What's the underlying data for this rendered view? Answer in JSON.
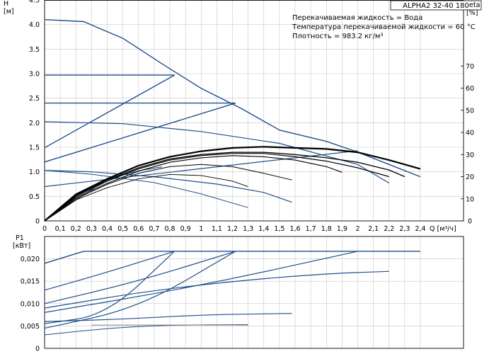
{
  "chart_data": [
    {
      "type": "line",
      "title": "ALPHA2 32-40 180",
      "ylabel": "H",
      "ylabel_unit": "[м]",
      "y2label": "eta",
      "y2label_unit": "[%]",
      "info_lines": [
        "Перекачиваемая жидкость = Вода",
        "Температура перекачиваемой жидкости = 60 °C",
        "Плотность = 983.2 кг/м³"
      ],
      "xlim": [
        0,
        2.4
      ],
      "ylim": [
        0,
        4.5
      ],
      "y2lim": [
        0,
        80
      ],
      "xticks": [
        "0",
        "0,1",
        "0,2",
        "0,3",
        "0,4",
        "0,5",
        "0,6",
        "0,7",
        "0,8",
        "0,9",
        "1",
        "1,1",
        "1,2",
        "1,3",
        "1,4",
        "1,5",
        "1,6",
        "1,7",
        "1,8",
        "1,9",
        "2",
        "2,1",
        "2,2",
        "2,3",
        "2,4"
      ],
      "xlabel_tail": "Q [м³/ч]",
      "yticks": [
        "0",
        "0.5",
        "1.0",
        "1.5",
        "2.0",
        "2.5",
        "3.0",
        "3.5",
        "4.0",
        "4.5"
      ],
      "y2ticks": [
        "0",
        "10",
        "20",
        "30",
        "40",
        "50",
        "60",
        "70"
      ],
      "grid": true,
      "series": [
        {
          "role": "pump-curve",
          "color": "#1f4e8c",
          "width": 1.4,
          "points": [
            [
              0,
              4.1
            ],
            [
              0.25,
              4.06
            ],
            [
              0.5,
              3.72
            ],
            [
              0.75,
              3.2
            ],
            [
              1.0,
              2.7
            ],
            [
              1.25,
              2.3
            ],
            [
              1.5,
              1.85
            ],
            [
              1.8,
              1.62
            ],
            [
              2.0,
              1.4
            ],
            [
              2.2,
              1.15
            ],
            [
              2.4,
              0.9
            ]
          ]
        },
        {
          "role": "constant-pressure",
          "color": "#1f4e8c",
          "width": 1.4,
          "points": [
            [
              0,
              2.97
            ],
            [
              0.83,
              2.97
            ]
          ]
        },
        {
          "role": "constant-pressure",
          "color": "#1f4e8c",
          "width": 1.4,
          "points": [
            [
              0,
              2.4
            ],
            [
              1.22,
              2.4
            ]
          ]
        },
        {
          "role": "proportional-pressure",
          "color": "#1f4e8c",
          "width": 1.4,
          "points": [
            [
              0,
              1.49
            ],
            [
              0.83,
              2.97
            ]
          ]
        },
        {
          "role": "proportional-pressure",
          "color": "#1f4e8c",
          "width": 1.4,
          "points": [
            [
              0,
              1.2
            ],
            [
              1.22,
              2.4
            ]
          ]
        },
        {
          "role": "proportional-pressure",
          "color": "#1f4e8c",
          "width": 1.2,
          "points": [
            [
              0,
              0.7
            ],
            [
              2.0,
              1.43
            ]
          ]
        },
        {
          "role": "constant-curve",
          "color": "#1f4e8c",
          "width": 1.2,
          "points": [
            [
              0,
              2.02
            ],
            [
              0.5,
              1.98
            ],
            [
              1.0,
              1.82
            ],
            [
              1.5,
              1.58
            ],
            [
              2.0,
              1.15
            ],
            [
              2.2,
              0.77
            ]
          ]
        },
        {
          "role": "constant-curve",
          "color": "#1f4e8c",
          "width": 1.2,
          "points": [
            [
              0,
              1.03
            ],
            [
              0.3,
              1.0
            ],
            [
              0.7,
              0.9
            ],
            [
              1.1,
              0.75
            ],
            [
              1.4,
              0.58
            ],
            [
              1.58,
              0.38
            ]
          ]
        },
        {
          "role": "constant-curve",
          "color": "#1f4e8c",
          "width": 1.0,
          "points": [
            [
              0,
              1.03
            ],
            [
              0.3,
              0.95
            ],
            [
              0.7,
              0.78
            ],
            [
              1.0,
              0.55
            ],
            [
              1.3,
              0.27
            ]
          ]
        },
        {
          "role": "system-curve",
          "color": "#1f4e8c",
          "width": 1.2,
          "points": [
            [
              0,
              0
            ],
            [
              0.4,
              0.85
            ],
            [
              0.6,
              1.02
            ],
            [
              0.75,
              1.1
            ]
          ]
        },
        {
          "role": "efficiency",
          "axis": "y2",
          "color": "#000000",
          "width": 2.2,
          "points": [
            [
              0,
              0
            ],
            [
              0.2,
              12
            ],
            [
              0.4,
              19
            ],
            [
              0.6,
              25
            ],
            [
              0.8,
              29
            ],
            [
              1.0,
              31.5
            ],
            [
              1.2,
              33
            ],
            [
              1.4,
              33.5
            ],
            [
              1.6,
              33
            ],
            [
              1.8,
              32.5
            ],
            [
              2.0,
              31
            ],
            [
              2.2,
              27.5
            ],
            [
              2.4,
              23.5
            ]
          ]
        },
        {
          "role": "efficiency",
          "axis": "y2",
          "color": "#000000",
          "width": 1.3,
          "points": [
            [
              0,
              0
            ],
            [
              0.2,
              11.5
            ],
            [
              0.4,
              18.5
            ],
            [
              0.6,
              24
            ],
            [
              0.8,
              28
            ],
            [
              1.0,
              30
            ],
            [
              1.2,
              31
            ],
            [
              1.4,
              31
            ],
            [
              1.6,
              30
            ],
            [
              1.8,
              28.5
            ],
            [
              2.0,
              26.5
            ],
            [
              2.2,
              23
            ],
            [
              2.3,
              20
            ]
          ]
        },
        {
          "role": "efficiency",
          "axis": "y2",
          "color": "#000000",
          "width": 1.2,
          "points": [
            [
              0,
              0
            ],
            [
              0.2,
              11
            ],
            [
              0.4,
              18
            ],
            [
              0.6,
              23.5
            ],
            [
              0.8,
              27.5
            ],
            [
              1.0,
              29.5
            ],
            [
              1.2,
              30.5
            ],
            [
              1.4,
              30.5
            ],
            [
              1.6,
              29
            ],
            [
              1.8,
              27
            ],
            [
              2.0,
              24
            ],
            [
              2.2,
              20
            ]
          ]
        },
        {
          "role": "efficiency",
          "axis": "y2",
          "color": "#000000",
          "width": 1.1,
          "points": [
            [
              0,
              0
            ],
            [
              0.2,
              10.5
            ],
            [
              0.4,
              17
            ],
            [
              0.6,
              22.5
            ],
            [
              0.8,
              26.5
            ],
            [
              1.0,
              28.5
            ],
            [
              1.2,
              29.5
            ],
            [
              1.4,
              29
            ],
            [
              1.6,
              27.5
            ],
            [
              1.8,
              24.5
            ],
            [
              1.9,
              22
            ]
          ]
        },
        {
          "role": "efficiency",
          "axis": "y2",
          "color": "#000000",
          "width": 1.0,
          "points": [
            [
              0,
              0
            ],
            [
              0.2,
              10
            ],
            [
              0.4,
              16.5
            ],
            [
              0.6,
              21.5
            ],
            [
              0.8,
              24.5
            ],
            [
              1.0,
              25.5
            ],
            [
              1.2,
              24.5
            ],
            [
              1.4,
              21.5
            ],
            [
              1.58,
              18.5
            ]
          ]
        },
        {
          "role": "efficiency",
          "axis": "y2",
          "color": "#000000",
          "width": 0.9,
          "points": [
            [
              0,
              0
            ],
            [
              0.2,
              9.5
            ],
            [
              0.4,
              15
            ],
            [
              0.6,
              19
            ],
            [
              0.8,
              21
            ],
            [
              1.0,
              20.5
            ],
            [
              1.2,
              18
            ],
            [
              1.3,
              15.5
            ]
          ]
        }
      ]
    },
    {
      "type": "line",
      "ylabel": "P1",
      "ylabel_unit": "[кВт]",
      "xlim": [
        0,
        2.4
      ],
      "ylim": [
        0,
        0.025
      ],
      "yticks": [
        "0",
        "0,005",
        "0,010",
        "0,015",
        "0,020"
      ],
      "grid": true,
      "series": [
        {
          "role": "max-power",
          "color": "#1f4e8c",
          "width": 1.4,
          "points": [
            [
              0,
              0.019
            ],
            [
              0.25,
              0.0217
            ],
            [
              2.4,
              0.0217
            ]
          ]
        },
        {
          "role": "power",
          "color": "#1f4e8c",
          "width": 1.2,
          "points": [
            [
              0,
              0.013
            ],
            [
              0.4,
              0.017
            ],
            [
              0.83,
              0.0217
            ]
          ]
        },
        {
          "role": "power",
          "color": "#1f4e8c",
          "width": 1.2,
          "points": [
            [
              0,
              0.01
            ],
            [
              0.6,
              0.015
            ],
            [
              1.22,
              0.0217
            ]
          ]
        },
        {
          "role": "power",
          "color": "#1f4e8c",
          "width": 1.2,
          "points": [
            [
              0,
              0.008
            ],
            [
              1.0,
              0.014
            ],
            [
              2.0,
              0.0217
            ]
          ]
        },
        {
          "role": "power",
          "color": "#1f4e8c",
          "width": 1.2,
          "points": [
            [
              0,
              0.009
            ],
            [
              0.6,
              0.0125
            ],
            [
              1.2,
              0.015
            ],
            [
              1.8,
              0.0167
            ],
            [
              2.2,
              0.0172
            ]
          ]
        },
        {
          "role": "power",
          "color": "#1f4e8c",
          "width": 1.2,
          "points": [
            [
              0,
              0.0055
            ],
            [
              0.4,
              0.0075
            ],
            [
              0.83,
              0.0217
            ]
          ]
        },
        {
          "role": "power",
          "color": "#1f4e8c",
          "width": 1.2,
          "points": [
            [
              0,
              0.0045
            ],
            [
              0.6,
              0.009
            ],
            [
              1.22,
              0.0217
            ]
          ]
        },
        {
          "role": "power",
          "color": "#1f4e8c",
          "width": 1.2,
          "points": [
            [
              0,
              0.006
            ],
            [
              0.5,
              0.0065
            ],
            [
              1.0,
              0.0075
            ],
            [
              1.58,
              0.0078
            ]
          ]
        },
        {
          "role": "power",
          "color": "#1f4e8c",
          "width": 1.0,
          "points": [
            [
              0,
              0.003
            ],
            [
              0.4,
              0.0045
            ],
            [
              0.8,
              0.0052
            ],
            [
              1.3,
              0.0053
            ]
          ]
        },
        {
          "role": "power",
          "color": "#888888",
          "width": 1.0,
          "points": [
            [
              0.3,
              0.0052
            ],
            [
              1.3,
              0.0052
            ]
          ]
        }
      ]
    }
  ]
}
